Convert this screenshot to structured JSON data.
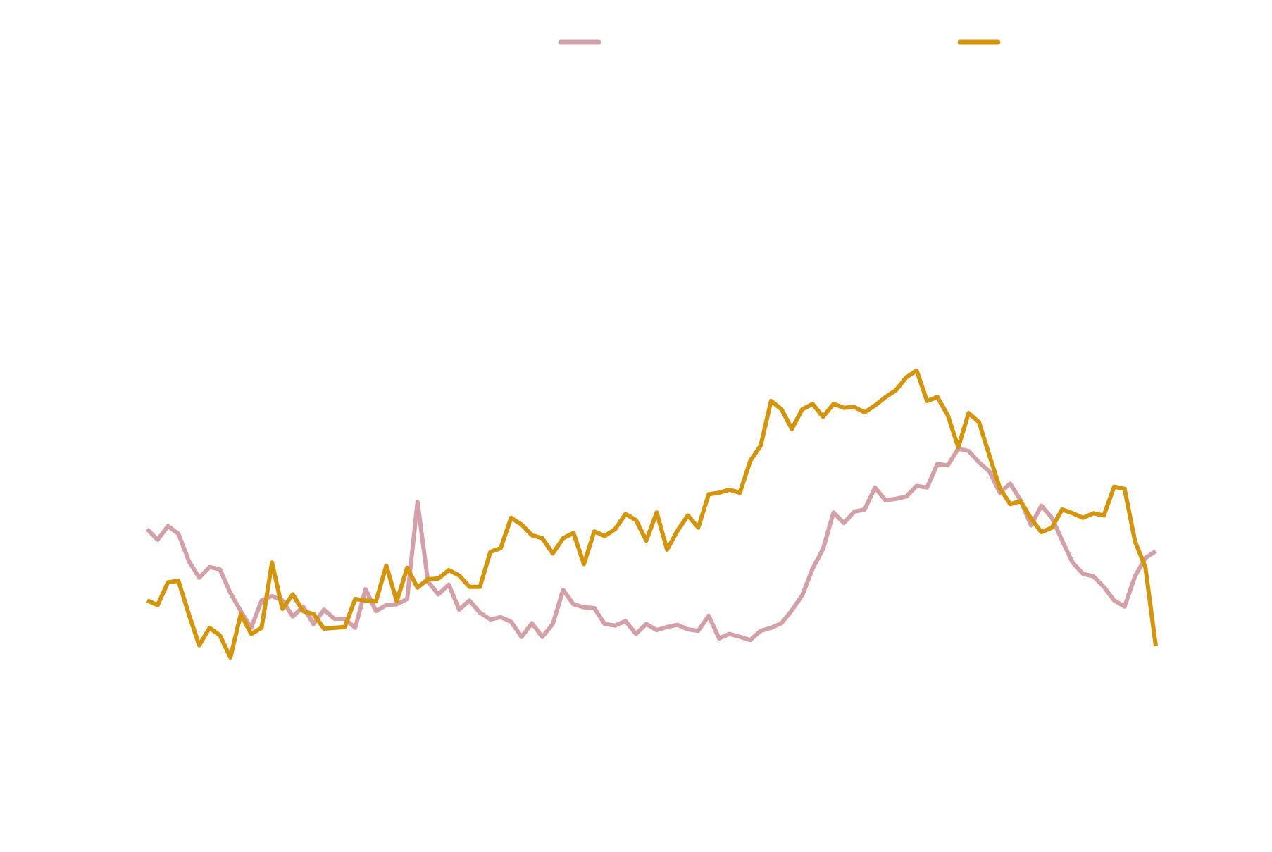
{
  "chart_data": {
    "type": "line",
    "title": "",
    "xlabel": "",
    "ylabel": "",
    "legend_placement": "top",
    "grid": false,
    "x": [
      0,
      1,
      2,
      3,
      4,
      5,
      6,
      7,
      8,
      9,
      10,
      11,
      12,
      13,
      14,
      15,
      16,
      17,
      18,
      19,
      20,
      21,
      22,
      23,
      24,
      25,
      26,
      27,
      28,
      29,
      30,
      31,
      32,
      33,
      34,
      35,
      36,
      37,
      38,
      39,
      40,
      41,
      42,
      43,
      44,
      45,
      46,
      47,
      48,
      49,
      50,
      51,
      52,
      53,
      54,
      55,
      56,
      57,
      58,
      59,
      60,
      61,
      62,
      63,
      64,
      65,
      66,
      67,
      68,
      69,
      70,
      71,
      72,
      73,
      74,
      75,
      76,
      77,
      78,
      79,
      80,
      81,
      82,
      83,
      84,
      85,
      86,
      87,
      88,
      89,
      90,
      91,
      92,
      93,
      94,
      95,
      96,
      97
    ],
    "xlim": [
      0,
      97
    ],
    "ylim": [
      0,
      1000
    ],
    "series": [
      {
        "name": "",
        "color": "#d4a0a8",
        "values": [
          352,
          338,
          356,
          346,
          310,
          288,
          302,
          299,
          268,
          244,
          222,
          258,
          264,
          258,
          237,
          250,
          227,
          246,
          234,
          234,
          222,
          273,
          244,
          252,
          253,
          260,
          388,
          283,
          266,
          279,
          246,
          258,
          242,
          233,
          236,
          230,
          210,
          228,
          210,
          227,
          272,
          253,
          249,
          248,
          227,
          225,
          231,
          214,
          227,
          219,
          223,
          226,
          220,
          218,
          238,
          208,
          214,
          210,
          206,
          218,
          222,
          228,
          245,
          265,
          300,
          326,
          374,
          360,
          375,
          378,
          407,
          390,
          392,
          395,
          409,
          407,
          438,
          436,
          458,
          455,
          440,
          428,
          400,
          412,
          390,
          357,
          383,
          367,
          337,
          308,
          293,
          290,
          276,
          258,
          250,
          290,
          314,
          323
        ]
      },
      {
        "name": "",
        "color": "#d4940c",
        "values": [
          258,
          252,
          282,
          284,
          240,
          199,
          222,
          212,
          183,
          240,
          214,
          222,
          308,
          247,
          266,
          244,
          240,
          221,
          222,
          223,
          260,
          258,
          257,
          304,
          257,
          301,
          275,
          286,
          287,
          298,
          291,
          276,
          276,
          322,
          327,
          367,
          358,
          344,
          340,
          320,
          340,
          347,
          306,
          349,
          343,
          352,
          372,
          364,
          337,
          374,
          325,
          350,
          370,
          354,
          398,
          400,
          404,
          400,
          442,
          462,
          521,
          510,
          484,
          510,
          517,
          500,
          517,
          512,
          513,
          506,
          515,
          526,
          535,
          552,
          561,
          521,
          526,
          502,
          460,
          505,
          493,
          449,
          406,
          385,
          389,
          366,
          348,
          354,
          378,
          373,
          367,
          373,
          370,
          408,
          405,
          336,
          302,
          198
        ]
      }
    ]
  }
}
